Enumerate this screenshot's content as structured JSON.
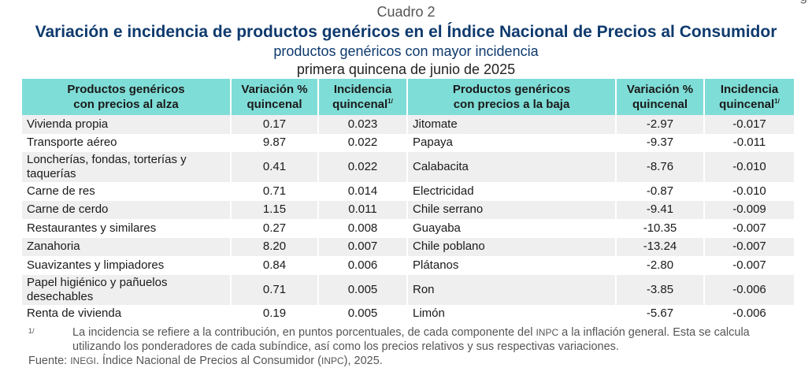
{
  "header": {
    "cuadro": "Cuadro 2",
    "title": "Variación e incidencia de productos genéricos en el Índice Nacional de Precios al Consumidor",
    "subtitle": "productos genéricos con mayor incidencia",
    "period": "primera quincena de junio de 2025",
    "cut_glyph": "g"
  },
  "table": {
    "headers": {
      "up_products_line1": "Productos genéricos",
      "up_products_line2": "con precios al alza",
      "variation_line1": "Variación %",
      "variation_line2": "quincenal",
      "incidence_line1": "Incidencia",
      "incidence_line2": "quincenal",
      "incidence_sup": "1/",
      "down_products_line1": "Productos genéricos",
      "down_products_line2": "con precios a la baja"
    },
    "rows": [
      {
        "up_name": "Vivienda propia",
        "up_var": "0.17",
        "up_inc": "0.023",
        "down_name": "Jitomate",
        "down_var": "-2.97",
        "down_inc": "-0.017"
      },
      {
        "up_name": "Transporte aéreo",
        "up_var": "9.87",
        "up_inc": "0.022",
        "down_name": "Papaya",
        "down_var": "-9.37",
        "down_inc": "-0.011"
      },
      {
        "up_name": "Loncherías, fondas, torterías y taquerías",
        "up_var": "0.41",
        "up_inc": "0.022",
        "down_name": "Calabacita",
        "down_var": "-8.76",
        "down_inc": "-0.010"
      },
      {
        "up_name": "Carne de res",
        "up_var": "0.71",
        "up_inc": "0.014",
        "down_name": "Electricidad",
        "down_var": "-0.87",
        "down_inc": "-0.010"
      },
      {
        "up_name": "Carne de cerdo",
        "up_var": "1.15",
        "up_inc": "0.011",
        "down_name": "Chile serrano",
        "down_var": "-9.41",
        "down_inc": "-0.009"
      },
      {
        "up_name": "Restaurantes y similares",
        "up_var": "0.27",
        "up_inc": "0.008",
        "down_name": "Guayaba",
        "down_var": "-10.35",
        "down_inc": "-0.007"
      },
      {
        "up_name": "Zanahoria",
        "up_var": "8.20",
        "up_inc": "0.007",
        "down_name": "Chile poblano",
        "down_var": "-13.24",
        "down_inc": "-0.007"
      },
      {
        "up_name": "Suavizantes y limpiadores",
        "up_var": "0.84",
        "up_inc": "0.006",
        "down_name": "Plátanos",
        "down_var": "-2.80",
        "down_inc": "-0.007"
      },
      {
        "up_name": "Papel higiénico y pañuelos desechables",
        "up_var": "0.71",
        "up_inc": "0.005",
        "down_name": "Ron",
        "down_var": "-3.85",
        "down_inc": "-0.006"
      },
      {
        "up_name": "Renta de vivienda",
        "up_var": "0.19",
        "up_inc": "0.005",
        "down_name": "Limón",
        "down_var": "-5.67",
        "down_inc": "-0.006"
      }
    ]
  },
  "footnote": {
    "mark": "1/",
    "text_before": "La incidencia se refiere a la contribución, en puntos porcentuales, de cada componente del ",
    "inpc": "INPC",
    "text_after": " a la inflación general. Esta se calcula utilizando los ponderadores de cada subíndice, así como los precios relativos y sus respectivas variaciones."
  },
  "source": {
    "label": "Fuente: ",
    "inegi": "INEGI",
    "text": ". Índice Nacional de Precios al Consumidor (",
    "inpc": "INPC",
    "year": "), 2025."
  }
}
